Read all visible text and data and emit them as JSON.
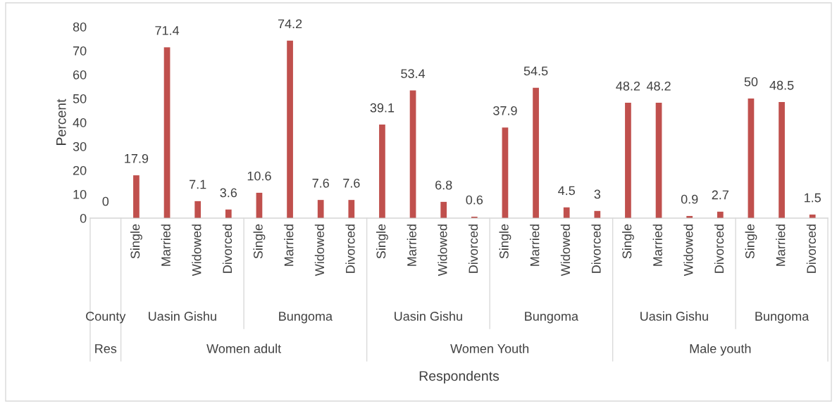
{
  "chart_data": {
    "type": "bar",
    "ylabel": "Percent",
    "categories": [
      null,
      "Single",
      "Married",
      "Widowed",
      "Divorced",
      "Single",
      "Married",
      "Widowed",
      "Divorced",
      "Single",
      "Married",
      "Widowed",
      "Divorced",
      "Single",
      "Married",
      "Widowed",
      "Divorced",
      "Single",
      "Married",
      "Widowed",
      "Divorced",
      "Single",
      "Married",
      "Divorced"
    ],
    "values": [
      0,
      17.9,
      71.4,
      7.1,
      3.6,
      10.6,
      74.2,
      7.6,
      7.6,
      39.1,
      53.4,
      6.8,
      0.6,
      37.9,
      54.5,
      4.5,
      3,
      48.2,
      48.2,
      0.9,
      2.7,
      50,
      48.5,
      1.5
    ],
    "color": "#c0504d",
    "ylim": [
      0,
      80
    ],
    "yticks": [
      0,
      10,
      20,
      30,
      40,
      50,
      60,
      70,
      80
    ],
    "grid": false,
    "data_labels": true,
    "annotations": [
      "County",
      "Uasin Gishu",
      "Bungoma",
      "Uasin Gishu",
      "Bungoma",
      "Uasin Gishu",
      "Bungoma",
      "Res",
      "Women adult",
      "Women Youth",
      "Male youth",
      "Respondents"
    ]
  }
}
